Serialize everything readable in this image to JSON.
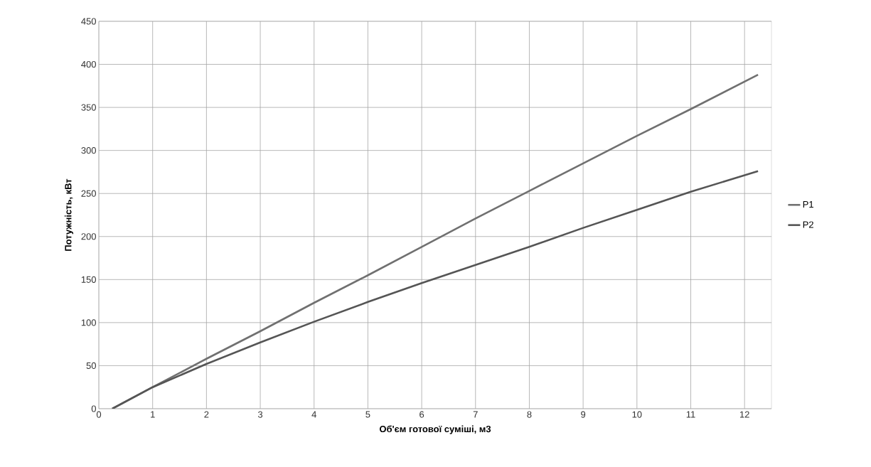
{
  "chart_data": {
    "type": "line",
    "xlabel": "Об'єм готової суміші, м3",
    "ylabel": "Потужність, кВт",
    "xlim": [
      0,
      12.5
    ],
    "xticks": [
      0,
      1,
      2,
      3,
      4,
      5,
      6,
      7,
      8,
      9,
      10,
      11,
      12
    ],
    "ylim": [
      0,
      450
    ],
    "yticks": [
      0,
      50,
      100,
      150,
      200,
      250,
      300,
      350,
      400,
      450
    ],
    "x": [
      0.25,
      1,
      2,
      3,
      4,
      5,
      6,
      7,
      8,
      9,
      10,
      11,
      12.25
    ],
    "series": [
      {
        "name": "P1",
        "color": "#707070",
        "values": [
          0,
          25,
          58,
          90,
          123,
          155,
          188,
          221,
          253,
          285,
          317,
          348,
          388
        ]
      },
      {
        "name": "P2",
        "color": "#555555",
        "values": [
          0,
          25,
          52,
          77,
          101,
          124,
          146,
          167,
          188,
          210,
          231,
          252,
          276
        ]
      }
    ],
    "grid": true,
    "legend": "right",
    "marker": "none",
    "line_style": "solid"
  }
}
